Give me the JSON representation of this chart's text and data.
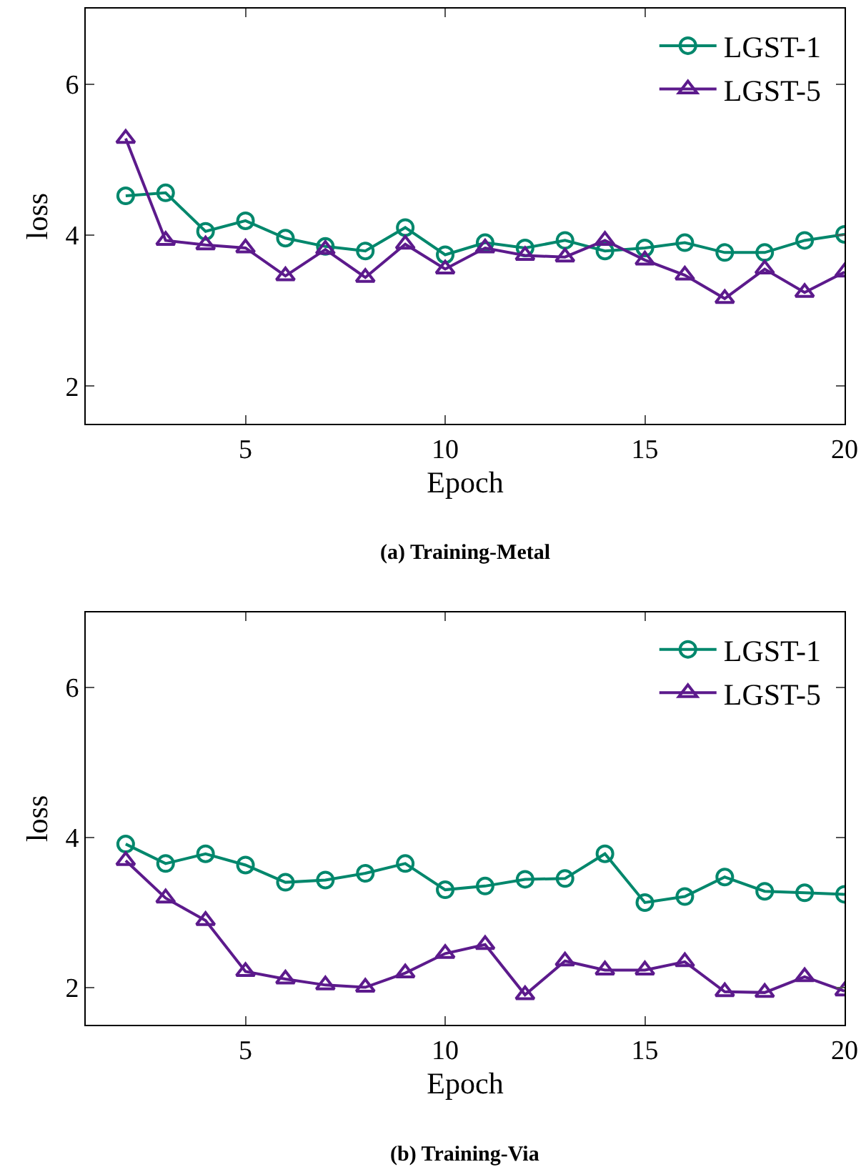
{
  "chart_data": [
    {
      "type": "line",
      "title": "(a) Training-Metal",
      "xlabel": "Epoch",
      "ylabel": "loss",
      "x": [
        2,
        3,
        4,
        5,
        6,
        7,
        8,
        9,
        10,
        11,
        12,
        13,
        14,
        15,
        16,
        17,
        18,
        19,
        20
      ],
      "xlim": [
        1,
        20
      ],
      "ylim": [
        1.5,
        7
      ],
      "xticks": [
        5,
        10,
        15,
        20
      ],
      "yticks": [
        2,
        4,
        6
      ],
      "legend": "top right",
      "line_style": "solid",
      "series": [
        {
          "name": "LGST-1",
          "color": "#00876c",
          "marker": "circle",
          "values": [
            4.52,
            4.56,
            4.05,
            4.19,
            3.96,
            3.85,
            3.79,
            4.1,
            3.74,
            3.9,
            3.83,
            3.93,
            3.79,
            3.83,
            3.9,
            3.77,
            3.77,
            3.93,
            4.01
          ]
        },
        {
          "name": "LGST-5",
          "color": "#5c1a8c",
          "marker": "triangle",
          "values": [
            5.28,
            3.93,
            3.87,
            3.83,
            3.46,
            3.81,
            3.44,
            3.88,
            3.55,
            3.83,
            3.73,
            3.71,
            3.93,
            3.67,
            3.47,
            3.16,
            3.55,
            3.24,
            3.51
          ]
        }
      ]
    },
    {
      "type": "line",
      "title": "(b) Training-Via",
      "xlabel": "Epoch",
      "ylabel": "loss",
      "x": [
        2,
        3,
        4,
        5,
        6,
        7,
        8,
        9,
        10,
        11,
        12,
        13,
        14,
        15,
        16,
        17,
        18,
        19,
        20
      ],
      "xlim": [
        1,
        20
      ],
      "ylim": [
        1.5,
        7
      ],
      "xticks": [
        5,
        10,
        15,
        20
      ],
      "yticks": [
        2,
        4,
        6
      ],
      "legend": "top right",
      "line_style": "solid",
      "series": [
        {
          "name": "LGST-1",
          "color": "#00876c",
          "marker": "circle",
          "values": [
            3.91,
            3.65,
            3.78,
            3.63,
            3.4,
            3.43,
            3.52,
            3.65,
            3.3,
            3.35,
            3.44,
            3.45,
            3.78,
            3.13,
            3.21,
            3.47,
            3.28,
            3.26,
            3.24
          ]
        },
        {
          "name": "LGST-5",
          "color": "#5c1a8c",
          "marker": "triangle",
          "values": [
            3.69,
            3.19,
            2.89,
            2.21,
            2.11,
            2.03,
            2.0,
            2.19,
            2.45,
            2.57,
            1.9,
            2.35,
            2.23,
            2.23,
            2.34,
            1.94,
            1.93,
            2.14,
            1.95
          ]
        }
      ]
    }
  ]
}
